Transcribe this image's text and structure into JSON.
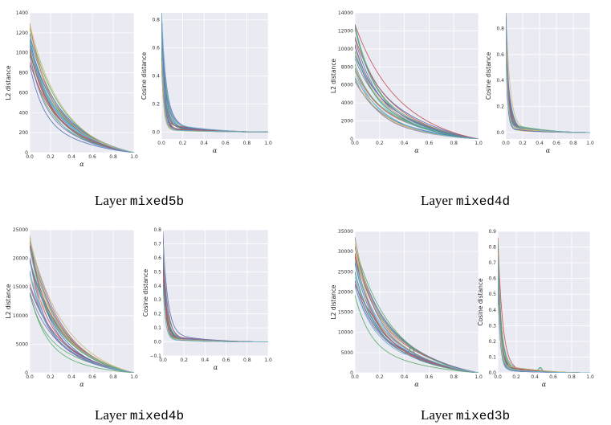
{
  "panels": [
    {
      "caption_prefix": "Layer",
      "caption_layer": "mixed5b",
      "chart_data": [
        {
          "type": "line",
          "ylabel": "L2 distance",
          "xlabel": "α",
          "xlim": [
            0.0,
            1.0
          ],
          "ylim": [
            0,
            1400
          ],
          "xticks": [
            "0.0",
            "0.2",
            "0.4",
            "0.6",
            "0.8",
            "1.0"
          ],
          "yticks": [
            0,
            200,
            400,
            600,
            800,
            1000,
            1200,
            1400
          ],
          "ytick_labels": [
            "0",
            "200",
            "400",
            "600",
            "800",
            "1000",
            "1200",
            "1400"
          ],
          "grid": true,
          "series_count": 24,
          "start_range": [
            880,
            1330
          ],
          "end_value": 0,
          "shape": "l2",
          "bump": null
        },
        {
          "type": "line",
          "ylabel": "Cosine distance",
          "xlabel": "α",
          "xlim": [
            0.0,
            1.0
          ],
          "ylim": [
            -0.05,
            0.85
          ],
          "xticks": [
            "0.0",
            "0.2",
            "0.4",
            "0.6",
            "0.8",
            "1.0"
          ],
          "yticks": [
            0.0,
            0.2,
            0.4,
            0.6,
            0.8
          ],
          "ytick_labels": [
            "0.0",
            "0.2",
            "0.4",
            "0.6",
            "0.8"
          ],
          "grid": true,
          "series_count": 24,
          "start_range": [
            0.45,
            0.84
          ],
          "end_value": 0,
          "shape": "cos",
          "bump": null
        }
      ]
    },
    {
      "caption_prefix": "Layer",
      "caption_layer": "mixed4d",
      "chart_data": [
        {
          "type": "line",
          "ylabel": "L2 distance",
          "xlabel": "α",
          "xlim": [
            0.0,
            1.0
          ],
          "ylim": [
            0,
            14000
          ],
          "xticks": [
            "0.0",
            "0.2",
            "0.4",
            "0.6",
            "0.8",
            "1.0"
          ],
          "yticks": [
            0,
            2000,
            4000,
            6000,
            8000,
            10000,
            12000,
            14000
          ],
          "ytick_labels": [
            "0",
            "2000",
            "4000",
            "6000",
            "8000",
            "10000",
            "12000",
            "14000"
          ],
          "grid": true,
          "series_count": 24,
          "start_range": [
            6200,
            13000
          ],
          "end_value": 0,
          "shape": "l2",
          "bump": null
        },
        {
          "type": "line",
          "ylabel": "Cosine distance",
          "xlabel": "α",
          "xlim": [
            0.0,
            1.0
          ],
          "ylim": [
            -0.05,
            0.92
          ],
          "xticks": [
            "0.0",
            "0.2",
            "0.4",
            "0.6",
            "0.8",
            "1.0"
          ],
          "yticks": [
            0.0,
            0.2,
            0.4,
            0.6,
            0.8
          ],
          "ytick_labels": [
            "0.0",
            "0.2",
            "0.4",
            "0.6",
            "0.8"
          ],
          "grid": true,
          "series_count": 24,
          "start_range": [
            0.5,
            0.9
          ],
          "end_value": 0,
          "shape": "cos",
          "bump": null
        }
      ]
    },
    {
      "caption_prefix": "Layer",
      "caption_layer": "mixed4b",
      "chart_data": [
        {
          "type": "line",
          "ylabel": "L2 distance",
          "xlabel": "α",
          "xlim": [
            0.0,
            1.0
          ],
          "ylim": [
            0,
            25000
          ],
          "xticks": [
            "0.0",
            "0.2",
            "0.4",
            "0.6",
            "0.8",
            "1.0"
          ],
          "yticks": [
            0,
            5000,
            10000,
            15000,
            20000,
            25000
          ],
          "ytick_labels": [
            "0",
            "5000",
            "10000",
            "15000",
            "20000",
            "25000"
          ],
          "grid": true,
          "series_count": 24,
          "start_range": [
            12500,
            24500
          ],
          "end_value": 0,
          "shape": "l2",
          "bump": null
        },
        {
          "type": "line",
          "ylabel": "Cosine distance",
          "xlabel": "α",
          "xlim": [
            0.0,
            1.0
          ],
          "ylim": [
            -0.1,
            0.8
          ],
          "xticks": [
            "0.0",
            "0.2",
            "0.4",
            "0.6",
            "0.8",
            "1.0"
          ],
          "yticks": [
            -0.1,
            0.0,
            0.1,
            0.2,
            0.3,
            0.4,
            0.5,
            0.6,
            0.7,
            0.8
          ],
          "ytick_labels": [
            "−0.1",
            "0.0",
            "0.1",
            "0.2",
            "0.3",
            "0.4",
            "0.5",
            "0.6",
            "0.7",
            "0.8"
          ],
          "grid": true,
          "series_count": 24,
          "start_range": [
            0.35,
            0.76
          ],
          "end_value": 0,
          "shape": "cos",
          "bump": null
        }
      ]
    },
    {
      "caption_prefix": "Layer",
      "caption_layer": "mixed3b",
      "chart_data": [
        {
          "type": "line",
          "ylabel": "L2 distance",
          "xlabel": "α",
          "xlim": [
            0.0,
            1.0
          ],
          "ylim": [
            0,
            35000
          ],
          "xticks": [
            "0.0",
            "0.2",
            "0.4",
            "0.6",
            "0.8",
            "1.0"
          ],
          "yticks": [
            0,
            5000,
            10000,
            15000,
            20000,
            25000,
            30000,
            35000
          ],
          "ytick_labels": [
            "0",
            "5000",
            "10000",
            "15000",
            "20000",
            "25000",
            "30000",
            "35000"
          ],
          "grid": true,
          "series_count": 24,
          "start_range": [
            19000,
            34000
          ],
          "end_value": 0,
          "shape": "l2",
          "bump": {
            "x": 0.46,
            "value": 2500
          }
        },
        {
          "type": "line",
          "ylabel": "Cosine distance",
          "xlabel": "α",
          "xlim": [
            0.0,
            1.0
          ],
          "ylim": [
            0.0,
            0.9
          ],
          "xticks": [
            "0.0",
            "0.2",
            "0.4",
            "0.6",
            "0.8",
            "1.0"
          ],
          "yticks": [
            0.0,
            0.1,
            0.2,
            0.3,
            0.4,
            0.5,
            0.6,
            0.7,
            0.8,
            0.9
          ],
          "ytick_labels": [
            "0.0",
            "0.1",
            "0.2",
            "0.3",
            "0.4",
            "0.5",
            "0.6",
            "0.7",
            "0.8",
            "0.9"
          ],
          "grid": true,
          "series_count": 24,
          "start_range": [
            0.42,
            0.84
          ],
          "end_value": 0,
          "shape": "cos",
          "bump": {
            "x": 0.46,
            "value": 0.03
          }
        }
      ]
    }
  ],
  "colors": {
    "plot_bg": "#eaeaf2",
    "grid": "#ffffff",
    "series": [
      "#4c72b0",
      "#55a868",
      "#c44e52",
      "#8172b2",
      "#ccb974",
      "#64b5cd",
      "#4c72b0",
      "#55a868",
      "#c44e52",
      "#8172b2",
      "#ccb974",
      "#64b5cd",
      "#4c72b0",
      "#55a868",
      "#c44e52",
      "#8172b2",
      "#ccb974",
      "#64b5cd",
      "#4c72b0",
      "#55a868",
      "#c44e52",
      "#8172b2",
      "#ccb974",
      "#64b5cd"
    ]
  }
}
